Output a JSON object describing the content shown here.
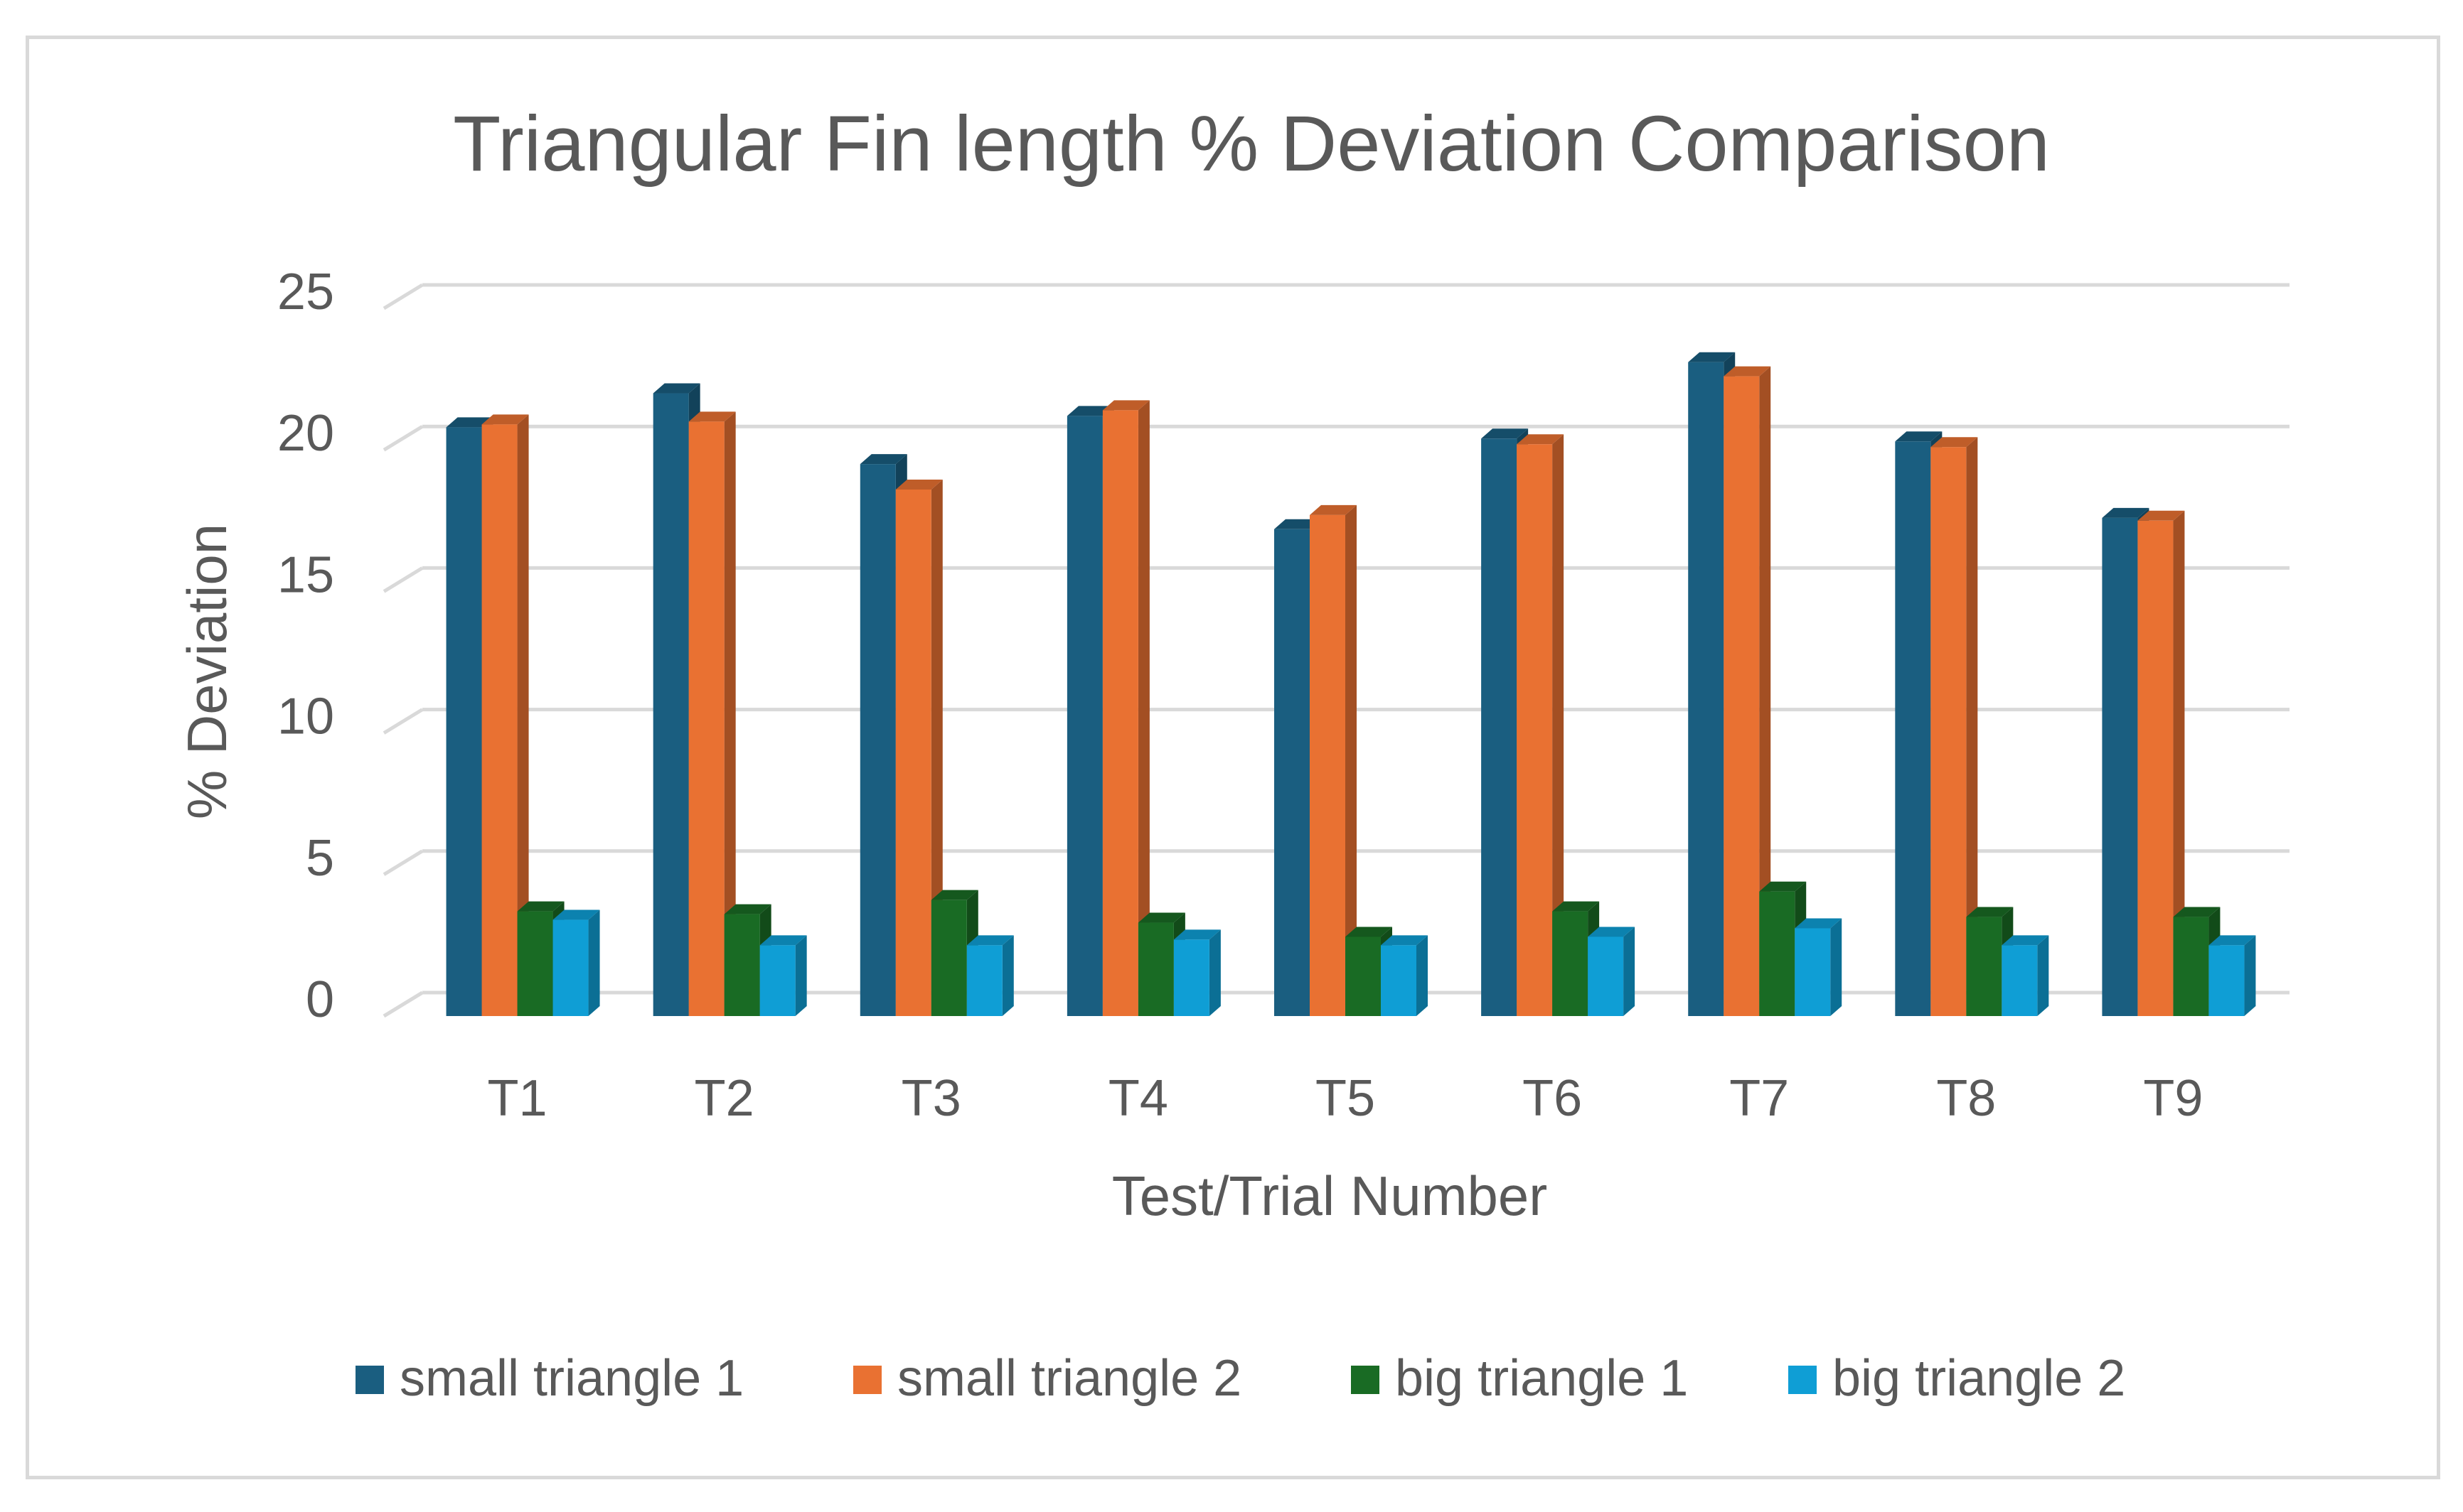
{
  "chart_data": {
    "type": "bar",
    "title": "Triangular Fin length % Deviation Comparison",
    "xlabel": "Test/Trial Number",
    "ylabel": "% Deviation",
    "ylim": [
      0,
      25
    ],
    "yticks": [
      "0",
      "5",
      "10",
      "15",
      "20",
      "25"
    ],
    "grid": true,
    "legend_position": "bottom",
    "categories": [
      "T1",
      "T2",
      "T3",
      "T4",
      "T5",
      "T6",
      "T7",
      "T8",
      "T9"
    ],
    "series": [
      {
        "name": "small triangle 1",
        "color": "#1a5e80",
        "values": [
          20.8,
          22.0,
          19.5,
          21.2,
          17.2,
          20.4,
          23.1,
          20.3,
          17.6
        ]
      },
      {
        "name": "small triangle 2",
        "color": "#e97132",
        "values": [
          20.9,
          21.0,
          18.6,
          21.4,
          17.7,
          20.2,
          22.6,
          20.1,
          17.5
        ]
      },
      {
        "name": "big triangle 1",
        "color": "#196b24",
        "values": [
          3.7,
          3.6,
          4.1,
          3.3,
          2.8,
          3.7,
          4.4,
          3.5,
          3.5
        ]
      },
      {
        "name": "big triangle 2",
        "color": "#0f9ed5",
        "values": [
          3.4,
          2.5,
          2.5,
          2.7,
          2.5,
          2.8,
          3.1,
          2.5,
          2.5
        ]
      }
    ]
  }
}
